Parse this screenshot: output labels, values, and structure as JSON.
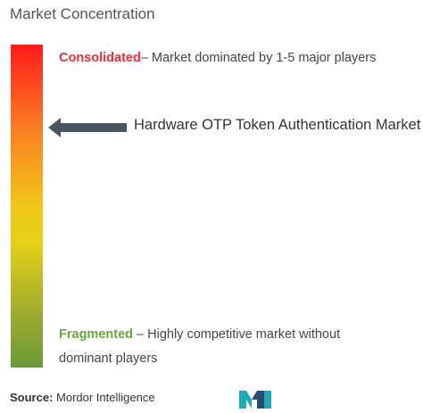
{
  "title": "Market Concentration",
  "consolidated": {
    "label": "Consolidated",
    "text": "– Market dominated by 1-5 major players"
  },
  "market_name": "Hardware OTP Token Authentication Market",
  "fragmented": {
    "label": "Fragmented",
    "text": " – Highly competitive market without dominant players"
  },
  "source": {
    "label": "Source:",
    "text": " Mordor Intelligence"
  },
  "colors": {
    "consolidated": "#e8313a",
    "fragmented": "#6ba542",
    "arrow": "#4a5560",
    "logo_teal": "#1ea9b4",
    "logo_dark": "#2c4a6e"
  },
  "gradient": [
    "#ff1a1a",
    "#f97a22",
    "#f2c61a",
    "#e3d019",
    "#a2ad2e",
    "#6a9a3a"
  ],
  "indicator_position": "near consolidated end",
  "icons": {
    "arrow": "left-arrow-icon",
    "logo": "mordor-intelligence-logo"
  }
}
